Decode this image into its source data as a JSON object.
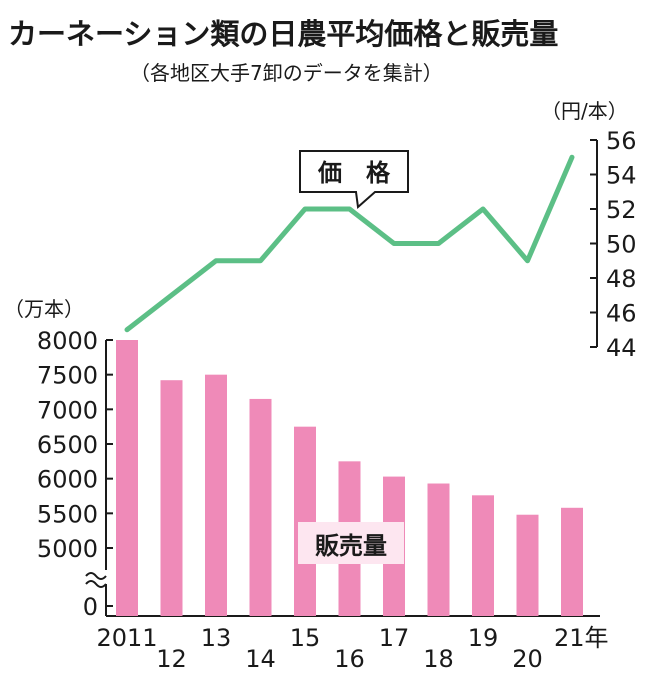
{
  "title": "カーネーション類の日農平均価格と販売量",
  "subtitle": "（各地区大手7卸のデータを集計）",
  "colors": {
    "bar": "#ef8ab8",
    "line": "#5cbf86",
    "axis": "#1a1a1a",
    "label_bg": "#fde6f0"
  },
  "chart_data": {
    "type": "bar+line",
    "x_categories": [
      "2011",
      "12",
      "13",
      "14",
      "15",
      "16",
      "17",
      "18",
      "19",
      "20",
      "21年"
    ],
    "sales": {
      "name": "販売量",
      "unit": "（万本）",
      "values": [
        8000,
        7420,
        7500,
        7150,
        6750,
        6250,
        6030,
        5930,
        5760,
        5480,
        5580
      ],
      "ylim": [
        0,
        8000
      ],
      "axis_break": [
        0,
        5000
      ],
      "ticks": [
        0,
        5000,
        5500,
        6000,
        6500,
        7000,
        7500,
        8000
      ],
      "tick_labels": [
        "0",
        "5000",
        "5500",
        "6000",
        "6500",
        "7000",
        "7500",
        "8000"
      ]
    },
    "price": {
      "name": "価格",
      "callout": "価　格",
      "unit": "（円/本）",
      "values": [
        45,
        47,
        49,
        49,
        52,
        52,
        50,
        50,
        52,
        49,
        55
      ],
      "ylim": [
        44,
        56
      ],
      "ticks": [
        44,
        46,
        48,
        50,
        52,
        54,
        56
      ],
      "tick_labels": [
        "44",
        "46",
        "48",
        "50",
        "52",
        "54",
        "56"
      ]
    }
  }
}
